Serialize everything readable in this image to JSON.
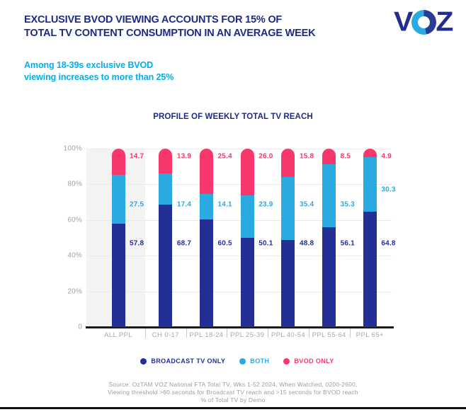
{
  "header": {
    "title_line1": "EXCLUSIVE BVOD VIEWING ACCOUNTS FOR 15% OF",
    "title_line2": "TOTAL TV CONTENT CONSUMPTION IN AN AVERAGE WEEK",
    "subtitle_line1": "Among 18-39s exclusive BVOD",
    "subtitle_line2": "viewing increases to more than 25%",
    "logo": {
      "letter_v": "V",
      "letter_z": "Z"
    }
  },
  "chart_data": {
    "type": "bar",
    "stacked": true,
    "title": "PROFILE OF WEEKLY TOTAL TV REACH",
    "categories": [
      "ALL PPL",
      "CH 0-17",
      "PPL 18-24",
      "PPL 25-39",
      "PPL 40-54",
      "PPL 55-64",
      "PPL 65+"
    ],
    "series": [
      {
        "name": "BROADCAST TV ONLY",
        "color": "#232f94",
        "values": [
          57.8,
          68.7,
          60.5,
          50.1,
          48.8,
          56.1,
          64.8
        ]
      },
      {
        "name": "BOTH",
        "color": "#29abe2",
        "values": [
          27.5,
          17.4,
          14.1,
          23.9,
          35.4,
          35.3,
          30.3
        ]
      },
      {
        "name": "BVOD ONLY",
        "color": "#f8386c",
        "values": [
          14.7,
          13.9,
          25.4,
          26.0,
          15.8,
          8.5,
          4.9
        ]
      }
    ],
    "y_ticks": [
      "100%",
      "80%",
      "60%",
      "40%",
      "20%",
      "0"
    ],
    "ylim": [
      0,
      100
    ],
    "ylabel": "",
    "xlabel": "",
    "grid": true,
    "legend_position": "bottom",
    "highlight_category": "ALL PPL"
  },
  "colors": {
    "title_navy": "#1e2b85",
    "subtitle_cyan": "#00aeef",
    "broadcast_navy": "#232f94",
    "both_cyan": "#29abe2",
    "bvod_pink": "#f8386c",
    "axis_gray": "#a2a2a6",
    "highlight_band": "#f3f3f4"
  },
  "footer": {
    "source_line1": "Source: OzTAM VOZ National FTA Total TV, Wks 1-52 2024, When Watched, 0200-2600,",
    "source_line2": "Viewing threshold >60 seconds for Broadcast TV reach and >15 seconds for BVOD reach",
    "source_line3": "% of Total TV by Demo"
  }
}
